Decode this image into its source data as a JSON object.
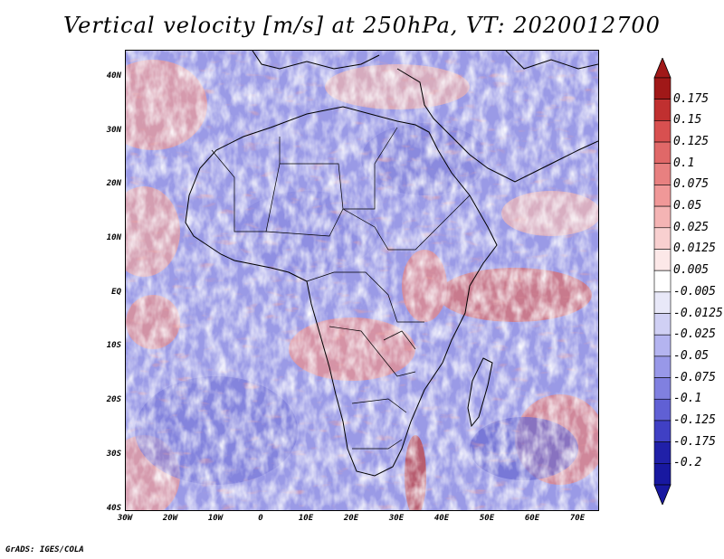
{
  "title": "Vertical velocity [m/s] at 250hPa, VT: 2020012700",
  "footer": "GrADS: IGES/COLA",
  "map": {
    "lat_ticks": [
      "40N",
      "30N",
      "20N",
      "10N",
      "EQ",
      "10S",
      "20S",
      "30S",
      "40S"
    ],
    "lon_ticks": [
      "30W",
      "20W",
      "10W",
      "0",
      "10E",
      "20E",
      "30E",
      "40E",
      "50E",
      "60E",
      "70E"
    ],
    "lon_range": [
      -30,
      75
    ],
    "lat_range": [
      -40,
      45
    ]
  },
  "colorbar": {
    "labels": [
      "0.175",
      "0.15",
      "0.125",
      "0.1",
      "0.075",
      "0.05",
      "0.025",
      "0.0125",
      "0.005",
      "-0.005",
      "-0.0125",
      "-0.025",
      "-0.05",
      "-0.075",
      "-0.1",
      "-0.125",
      "-0.175",
      "-0.2"
    ],
    "colors": [
      "#a01818",
      "#c03030",
      "#d85050",
      "#e06868",
      "#e88080",
      "#f09898",
      "#f4b4b4",
      "#f8d0d0",
      "#fce8e8",
      "#ffffff",
      "#e8e8f8",
      "#d0d0f4",
      "#b4b4f0",
      "#9898e8",
      "#8080e0",
      "#6060d4",
      "#4040c4",
      "#2020a8",
      "#1818a0"
    ],
    "tip_top": "#a01818",
    "tip_bottom": "#1818a0"
  }
}
